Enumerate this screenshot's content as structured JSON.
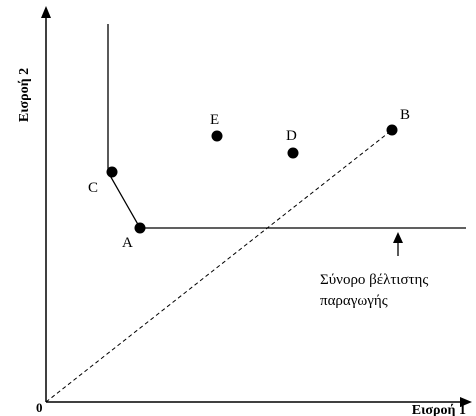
{
  "axes": {
    "x_title": "Εισροή 1",
    "y_title": "Εισροή 2",
    "origin_label": "0"
  },
  "points": [
    {
      "id": "A",
      "label": "A"
    },
    {
      "id": "B",
      "label": "B"
    },
    {
      "id": "C",
      "label": "C"
    },
    {
      "id": "D",
      "label": "D"
    },
    {
      "id": "E",
      "label": "E"
    }
  ],
  "annotation": {
    "line1": "Σύνορο βέλτιστης",
    "line2": "παραγωγής"
  },
  "colors": {
    "ink": "#000000",
    "background": "#ffffff"
  }
}
